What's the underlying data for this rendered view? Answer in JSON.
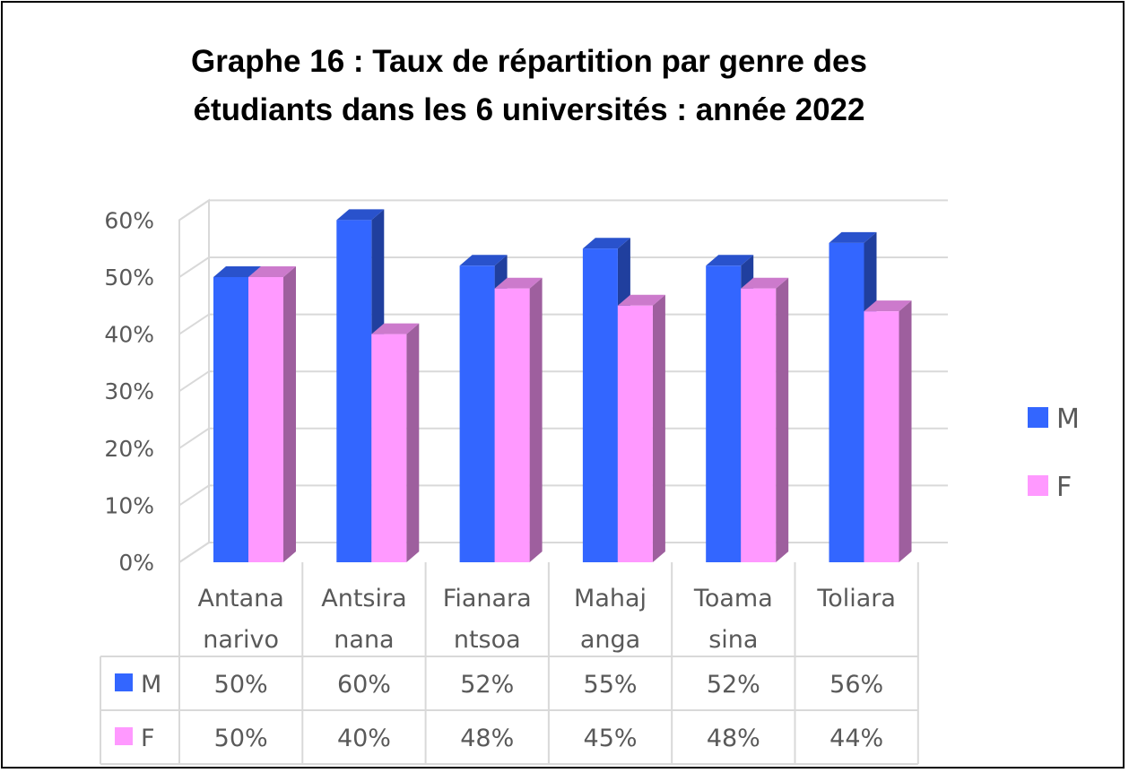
{
  "chart_data": {
    "type": "bar",
    "title": [
      "Graphe 16 : Taux de répartition par genre des",
      "étudiants dans les 6 universités : année 2022"
    ],
    "categories": [
      [
        "Antana",
        "narivo"
      ],
      [
        "Antsira",
        "nana"
      ],
      [
        "Fianara",
        "ntsoa"
      ],
      [
        "Mahaj",
        "anga"
      ],
      [
        "Toama",
        "sina"
      ],
      [
        "Toliara"
      ]
    ],
    "series": [
      {
        "name": "M",
        "color": "#3366FF",
        "values": [
          50,
          60,
          52,
          55,
          52,
          56
        ],
        "labels": [
          "50%",
          "60%",
          "52%",
          "55%",
          "52%",
          "56%"
        ]
      },
      {
        "name": "F",
        "color": "#FF99FF",
        "values": [
          50,
          40,
          48,
          45,
          48,
          44
        ],
        "labels": [
          "50%",
          "40%",
          "48%",
          "45%",
          "48%",
          "44%"
        ]
      }
    ],
    "yticks": [
      "0%",
      "10%",
      "20%",
      "30%",
      "40%",
      "50%",
      "60%"
    ],
    "ylim": [
      0,
      60
    ],
    "grid": true,
    "legend": "right",
    "data_table": true
  }
}
